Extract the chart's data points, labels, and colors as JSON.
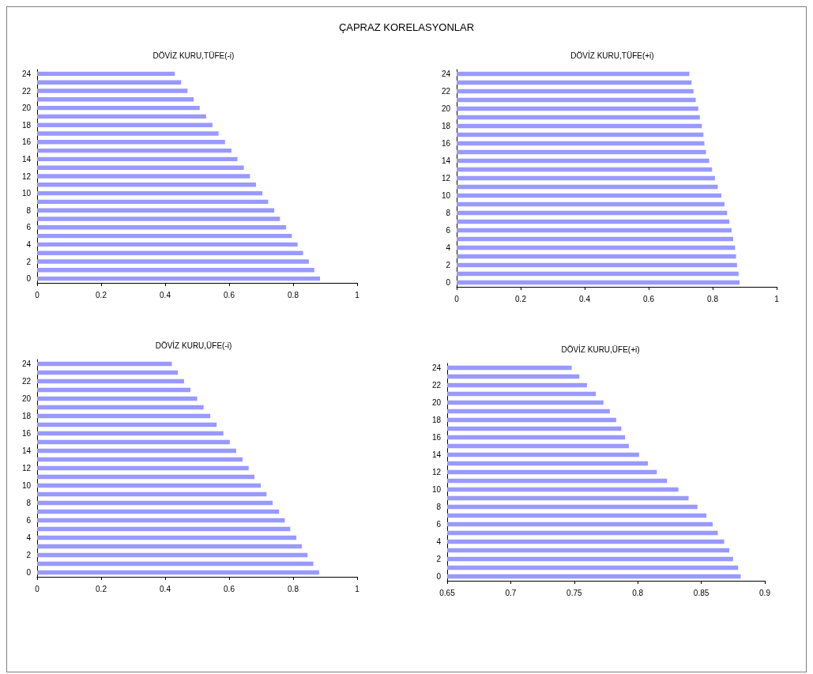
{
  "chart_data": [
    {
      "type": "bar",
      "orientation": "horizontal",
      "title": "DÖVİZ KURU,TÜFE(-i)",
      "annotations": [
        "ÇAPRAZ KORELASYONLAR"
      ],
      "categories": [
        "24",
        null,
        "22",
        null,
        "20",
        null,
        "18",
        null,
        "16",
        null,
        "14",
        null,
        "12",
        null,
        "10",
        null,
        "8",
        null,
        "6",
        null,
        "4",
        null,
        "2",
        null,
        "0"
      ],
      "values": [
        0.43,
        0.45,
        0.47,
        0.489,
        0.508,
        0.528,
        0.548,
        0.567,
        0.587,
        0.607,
        0.626,
        0.646,
        0.665,
        0.684,
        0.704,
        0.722,
        0.741,
        0.759,
        0.778,
        0.796,
        0.814,
        0.831,
        0.849,
        0.866,
        0.884
      ],
      "color": "#9999ff",
      "xlim": [
        0,
        1
      ],
      "xticks": [
        0,
        0.2,
        0.4,
        0.6,
        0.8,
        1
      ]
    },
    {
      "type": "bar",
      "orientation": "horizontal",
      "title": "DÖVİZ KURU,TÜFE(+i)",
      "categories": [
        "24",
        null,
        "22",
        null,
        "20",
        null,
        "18",
        null,
        "16",
        null,
        "14",
        null,
        "12",
        null,
        "10",
        null,
        "8",
        null,
        "6",
        null,
        "4",
        null,
        "2",
        null,
        "0"
      ],
      "values": [
        0.727,
        0.734,
        0.74,
        0.747,
        0.755,
        0.76,
        0.766,
        0.771,
        0.774,
        0.779,
        0.789,
        0.798,
        0.807,
        0.816,
        0.827,
        0.837,
        0.845,
        0.852,
        0.859,
        0.864,
        0.87,
        0.873,
        0.876,
        0.881,
        0.884
      ],
      "color": "#9999ff",
      "xlim": [
        0,
        1
      ],
      "xticks": [
        0,
        0.2,
        0.4,
        0.6,
        0.8,
        1
      ]
    },
    {
      "type": "bar",
      "orientation": "horizontal",
      "title": "DÖVİZ KURU,ÜFE(-i)",
      "categories": [
        "24",
        null,
        "22",
        null,
        "20",
        null,
        "18",
        null,
        "16",
        null,
        "14",
        null,
        "12",
        null,
        "10",
        null,
        "8",
        null,
        "6",
        null,
        "4",
        null,
        "2",
        null,
        "0"
      ],
      "values": [
        0.421,
        0.44,
        0.459,
        0.479,
        0.5,
        0.52,
        0.541,
        0.561,
        0.582,
        0.602,
        0.622,
        0.642,
        0.661,
        0.679,
        0.699,
        0.717,
        0.736,
        0.756,
        0.774,
        0.791,
        0.81,
        0.827,
        0.845,
        0.863,
        0.881
      ],
      "color": "#9999ff",
      "xlim": [
        0,
        1
      ],
      "xticks": [
        0,
        0.2,
        0.4,
        0.6,
        0.8,
        1
      ]
    },
    {
      "type": "bar",
      "orientation": "horizontal",
      "title": "DÖVİZ KURU,ÜFE(+i)",
      "categories": [
        "24",
        null,
        "22",
        null,
        "20",
        null,
        "18",
        null,
        "16",
        null,
        "14",
        null,
        "12",
        null,
        "10",
        null,
        "8",
        null,
        "6",
        null,
        "4",
        null,
        "2",
        null,
        "0"
      ],
      "values": [
        0.748,
        0.754,
        0.76,
        0.767,
        0.773,
        0.778,
        0.783,
        0.787,
        0.79,
        0.793,
        0.801,
        0.808,
        0.815,
        0.823,
        0.832,
        0.84,
        0.847,
        0.854,
        0.859,
        0.863,
        0.868,
        0.872,
        0.875,
        0.879,
        0.881
      ],
      "color": "#9999ff",
      "xlim": [
        0.65,
        0.9
      ],
      "xticks": [
        0.65,
        0.7,
        0.75,
        0.8,
        0.85,
        0.9
      ]
    }
  ]
}
